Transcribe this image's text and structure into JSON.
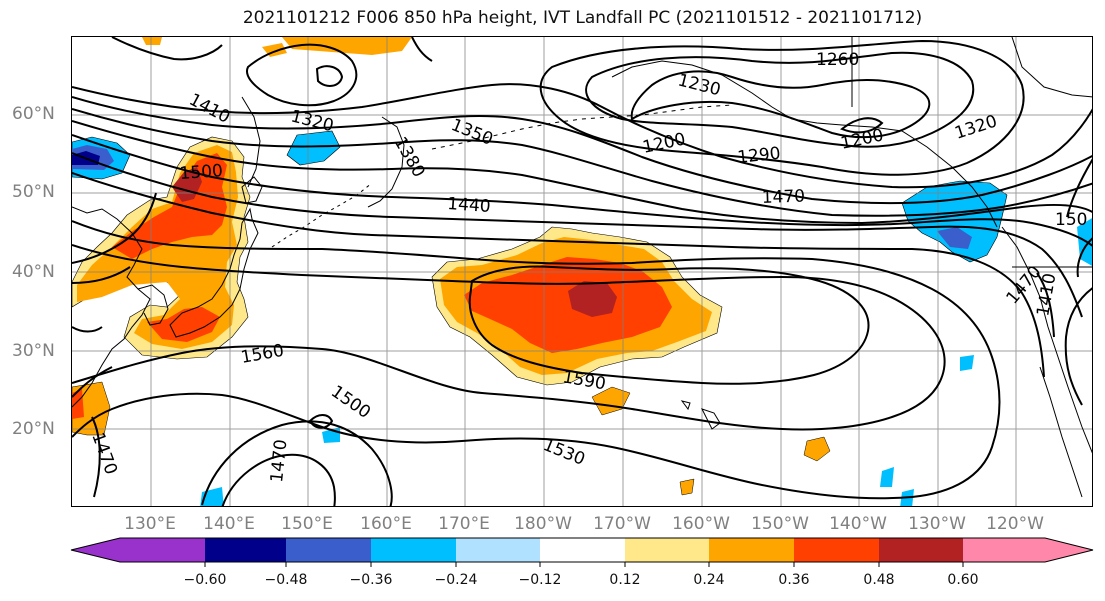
{
  "title": "2021101212 F006 850 hPa height, IVT Landfall PC (2021101512 - 2021101712)",
  "latitudes": [
    "60°N",
    "50°N",
    "40°N",
    "30°N",
    "20°N"
  ],
  "longitudes": [
    "130°E",
    "140°E",
    "150°E",
    "160°E",
    "170°E",
    "180°W",
    "170°W",
    "160°W",
    "150°W",
    "140°W",
    "130°W",
    "120°W"
  ],
  "contour_labels": [
    "1260",
    "1230",
    "1320",
    "1410",
    "1350",
    "1380",
    "1200",
    "1290",
    "1200",
    "1320",
    "1500",
    "1440",
    "1470",
    "150",
    "1560",
    "1590",
    "1500",
    "1530",
    "1470",
    "1470",
    "1470",
    "1410"
  ],
  "colorbar": {
    "ticks": [
      "−0.60",
      "−0.48",
      "−0.36",
      "−0.24",
      "−0.12",
      "0.12",
      "0.24",
      "0.36",
      "0.48",
      "0.60"
    ],
    "colors": [
      "#9932cc",
      "#00008b",
      "#3a5fcd",
      "#00bfff",
      "#b0e2ff",
      "#ffffff",
      "#ffe88a",
      "#ffa500",
      "#ff4000",
      "#b22222",
      "#ff88aa"
    ]
  }
}
